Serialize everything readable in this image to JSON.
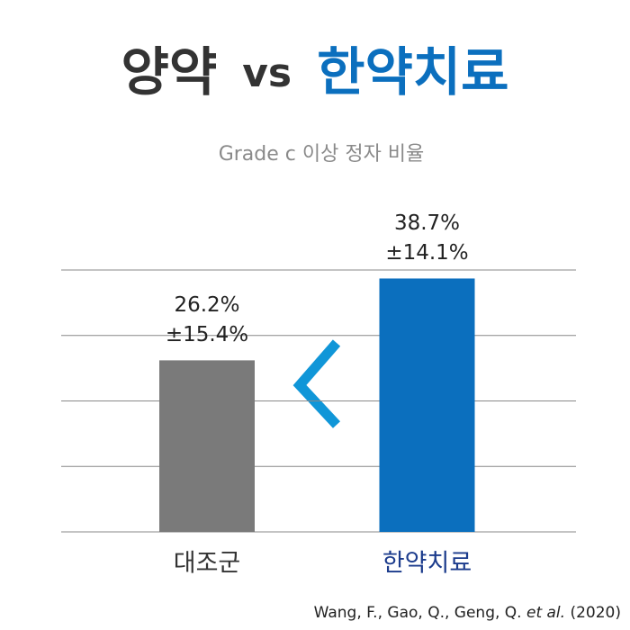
{
  "chart_data": {
    "type": "bar",
    "title_parts": [
      {
        "text": "양약",
        "color": "#333333"
      },
      {
        "text": "vs",
        "color": "#333333"
      },
      {
        "text": "한약치료",
        "color": "#0b6fbe"
      }
    ],
    "subtitle": "Grade c 이상 정자 비율",
    "categories": [
      "대조군",
      "한약치료"
    ],
    "category_colors": [
      "#333333",
      "#1b3b8c"
    ],
    "values": [
      26.2,
      38.7
    ],
    "value_labels": [
      "26.2%",
      "38.7%"
    ],
    "errors": [
      15.4,
      14.1
    ],
    "error_labels": [
      "±15.4%",
      "±14.1%"
    ],
    "colors": [
      "#7a7a7a",
      "#0b6fbe"
    ],
    "ylim": [
      0,
      40
    ],
    "yticks": [
      0,
      10,
      20,
      30,
      40
    ],
    "grid": true,
    "source_parts": [
      {
        "text": "Wang, F., Gao, Q., Geng, Q. ",
        "italic": false
      },
      {
        "text": "et al.",
        "italic": true
      },
      {
        "text": " (2020)",
        "italic": false
      }
    ]
  }
}
